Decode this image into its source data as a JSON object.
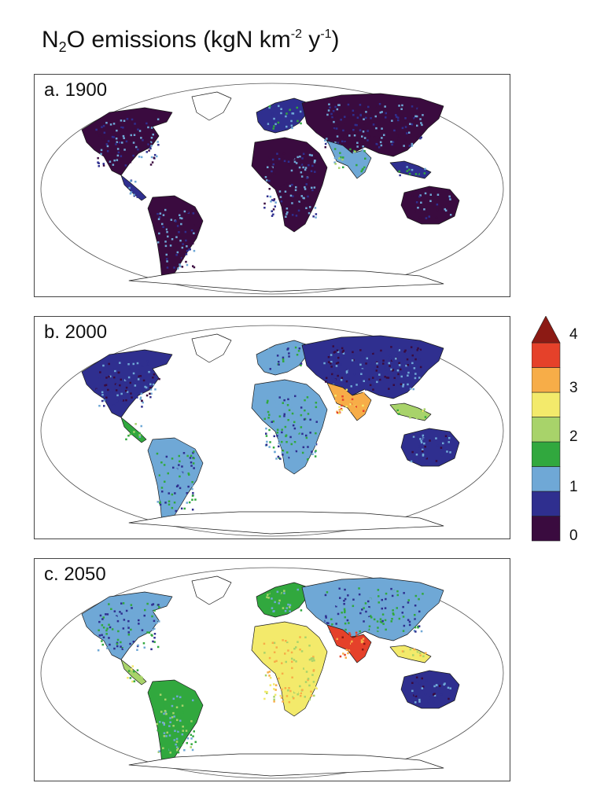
{
  "title": {
    "main": "N",
    "sub": "2",
    "mid": "O emissions (kgN km",
    "sup1": "-2",
    "mid2": " y",
    "sup2": "-1",
    "end": ")"
  },
  "panels": [
    {
      "label": "a. 1900"
    },
    {
      "label": "b. 2000"
    },
    {
      "label": "c. 2050"
    }
  ],
  "legend": {
    "ticks": [
      "4",
      "3",
      "2",
      "1",
      "0"
    ],
    "colors": [
      "#3a0b3f",
      "#2f2f8f",
      "#6fa8d6",
      "#31a83e",
      "#a8d36a",
      "#f3ea6b",
      "#f7ad48",
      "#e5412a",
      "#8c1a14"
    ]
  },
  "colors": {
    "ocean": "#ffffff",
    "land_outline": "#1a1a1a",
    "panel_border": "#444444"
  }
}
